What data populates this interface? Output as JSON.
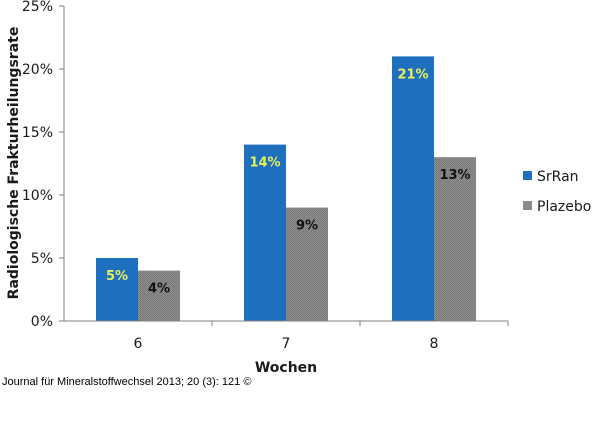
{
  "chart_data": {
    "type": "bar",
    "categories": [
      "6",
      "7",
      "8"
    ],
    "series": [
      {
        "name": "SrRan",
        "values": [
          5,
          14,
          21
        ],
        "color": "#1f6fbf",
        "label_color": "#e8f05a"
      },
      {
        "name": "Plazebo",
        "values": [
          4,
          9,
          13
        ],
        "color": "#8a8a8a",
        "label_color": "#111111"
      }
    ],
    "xlabel": "Wochen",
    "ylabel": "Radiologische Frakturheilungsrate",
    "ylim": [
      0,
      25
    ],
    "yticks": [
      "0%",
      "5%",
      "10%",
      "15%",
      "20%",
      "25%"
    ],
    "data_labels": [
      [
        "5%",
        "14%",
        "21%"
      ],
      [
        "4%",
        "9%",
        "13%"
      ]
    ],
    "legend_position": "right",
    "grid": false
  },
  "caption": "Journal für Mineralstoffwechsel 2013; 20 (3): 121 ©"
}
